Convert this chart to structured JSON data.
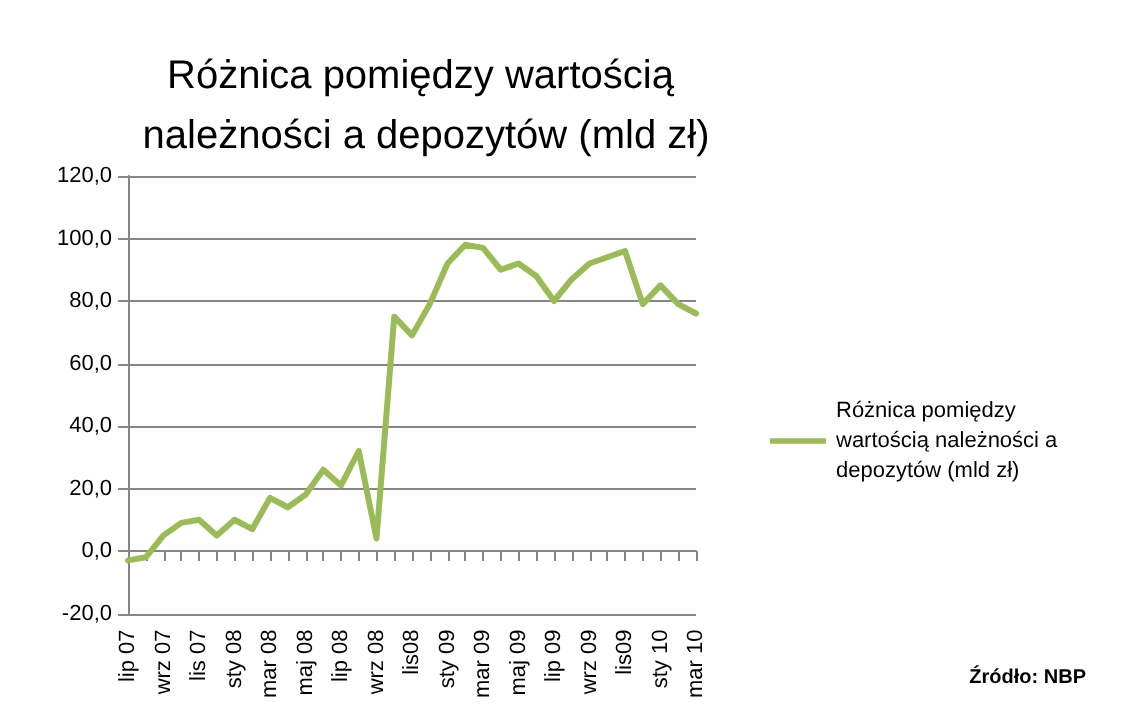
{
  "chart_data": {
    "type": "line",
    "title": "Różnica pomiędzy wartością należności a depozytów (mld zł)",
    "categories": [
      "lip 07",
      null,
      "wrz 07",
      null,
      "lis 07",
      null,
      "sty 08",
      null,
      "mar 08",
      null,
      "maj 08",
      null,
      "lip 08",
      null,
      "wrz 08",
      null,
      "lis08",
      null,
      "sty 09",
      null,
      "mar 09",
      null,
      "maj 09",
      null,
      "lip 09",
      null,
      "wrz 09",
      null,
      "lis09",
      null,
      "sty 10",
      null,
      "mar 10"
    ],
    "series": [
      {
        "name": "Różnica pomiędzy wartością należności a depozytów (mld zł)",
        "color": "#9bbb59",
        "values": [
          -3,
          -2,
          5,
          9,
          10,
          5,
          10,
          7,
          17,
          14,
          18,
          26,
          21,
          32,
          4,
          75,
          69,
          79,
          92,
          98,
          97,
          90,
          92,
          88,
          80,
          87,
          92,
          94,
          96,
          79,
          85,
          79,
          76
        ]
      }
    ],
    "ylim": [
      -20,
      120
    ],
    "yticks": [
      {
        "value": -20,
        "label": "-20,0"
      },
      {
        "value": 0,
        "label": "0,0"
      },
      {
        "value": 20,
        "label": "20,0"
      },
      {
        "value": 40,
        "label": "40,0"
      },
      {
        "value": 60,
        "label": "60,0"
      },
      {
        "value": 80,
        "label": "80,0"
      },
      {
        "value": 100,
        "label": "100,0"
      },
      {
        "value": 120,
        "label": "120,0"
      }
    ],
    "grid": "y",
    "legend": "right",
    "marker": "none",
    "line_style": "solid",
    "annotations": [
      "Źródło: NBP"
    ]
  }
}
